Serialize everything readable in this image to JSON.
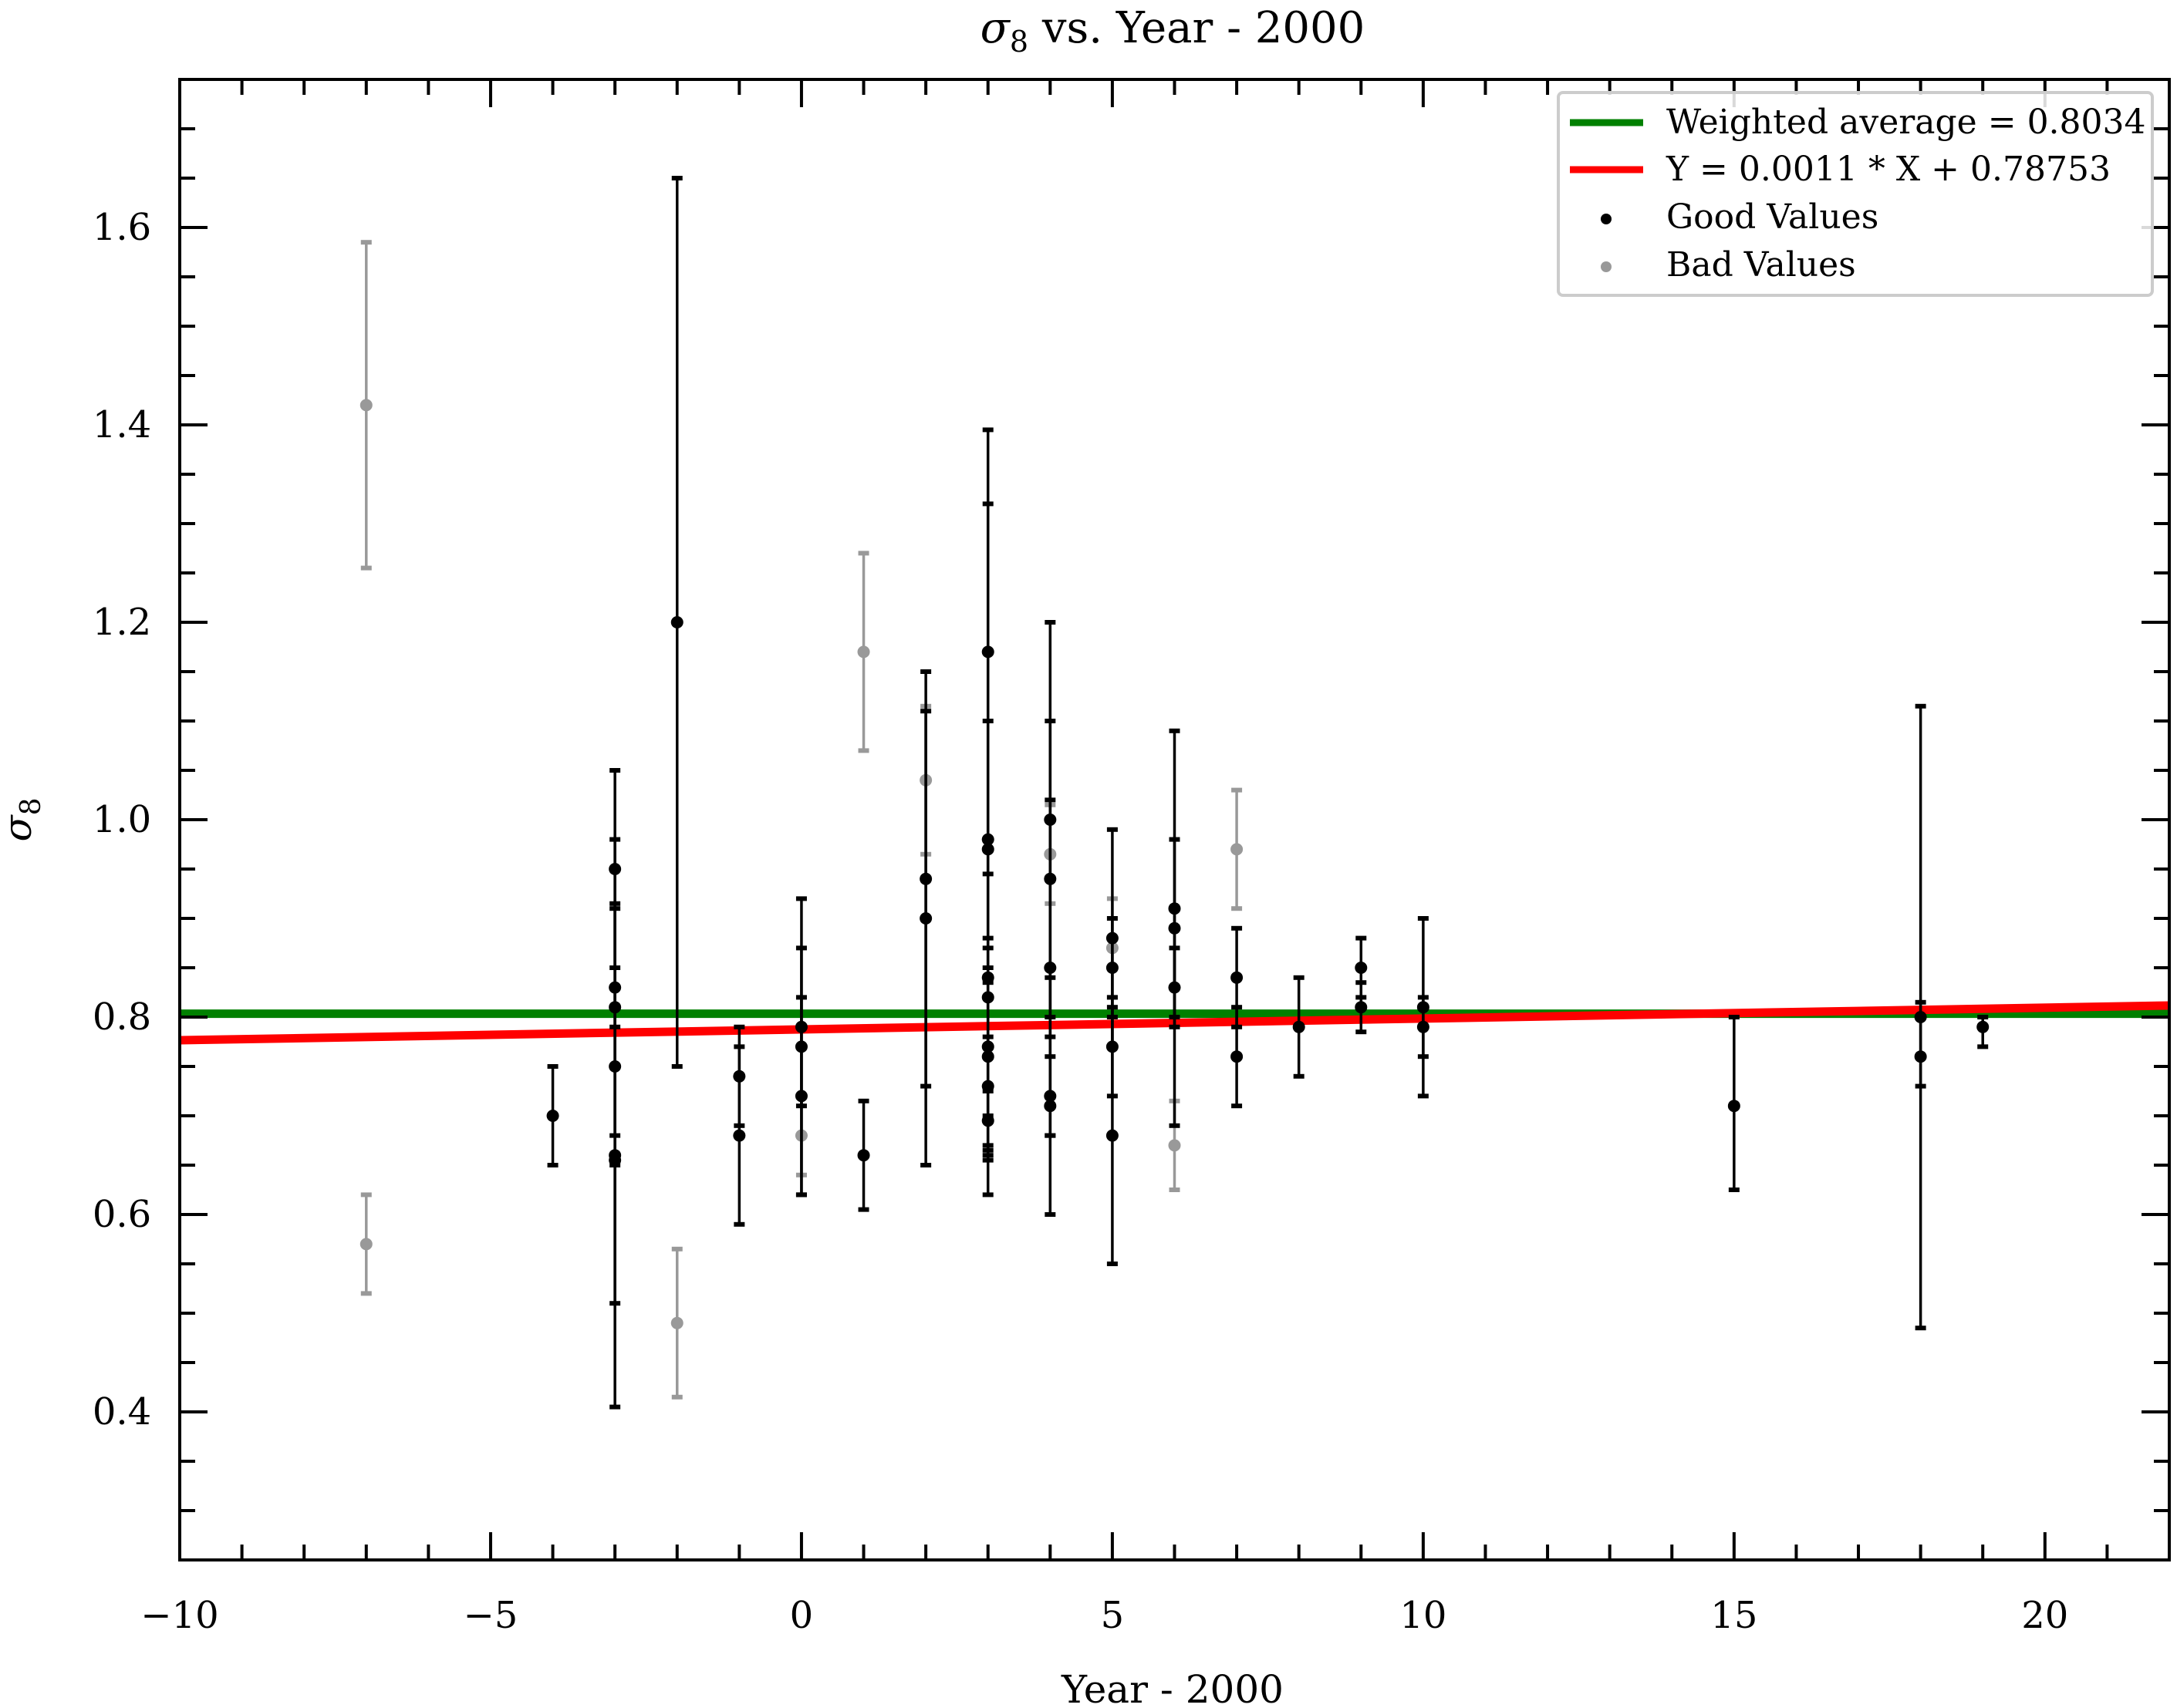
{
  "chart_data": {
    "type": "scatter",
    "title_prefix": "σ",
    "title_sub": "8",
    "title_suffix": " vs. Year - 2000",
    "xlabel": "Year - 2000",
    "ylabel_main": "σ",
    "ylabel_sub": "8",
    "xlim": [
      -10,
      22
    ],
    "ylim": [
      0.25,
      1.75
    ],
    "xticks": [
      -10,
      -5,
      0,
      5,
      10,
      15,
      20
    ],
    "xtick_labels": [
      "−10",
      "−5",
      "0",
      "5",
      "10",
      "15",
      "20"
    ],
    "yticks": [
      0.4,
      0.6,
      0.8,
      1.0,
      1.2,
      1.4,
      1.6
    ],
    "ytick_labels": [
      "0.4",
      "0.6",
      "0.8",
      "1.0",
      "1.2",
      "1.4",
      "1.6"
    ],
    "legend_position": "top-right",
    "legend": [
      {
        "label": "Weighted average = 0.8034",
        "kind": "line",
        "color": "#008000"
      },
      {
        "label": "Y = 0.0011 * X + 0.78753",
        "kind": "line",
        "color": "#ff0000"
      },
      {
        "label": "Good Values",
        "kind": "point",
        "color": "#000000"
      },
      {
        "label": "Bad Values",
        "kind": "point",
        "color": "#999999"
      }
    ],
    "lines": [
      {
        "name": "Weighted average = 0.8034",
        "color": "#008000",
        "slope": 0,
        "intercept": 0.8034
      },
      {
        "name": "Y = 0.0011 * X + 0.78753",
        "color": "#ff0000",
        "slope": 0.0011,
        "intercept": 0.78753
      }
    ],
    "series": [
      {
        "name": "Good Values",
        "color": "#000000",
        "points": [
          {
            "x": -4,
            "y": 0.7,
            "lo": 0.65,
            "hi": 0.75
          },
          {
            "x": -3,
            "y": 0.95,
            "lo": 0.85,
            "hi": 1.05
          },
          {
            "x": -3,
            "y": 0.83,
            "lo": 0.68,
            "hi": 0.98
          },
          {
            "x": -3,
            "y": 0.81,
            "lo": 0.79,
            "hi": 0.83
          },
          {
            "x": -3,
            "y": 0.75,
            "lo": 0.51,
            "hi": 0.91
          },
          {
            "x": -3,
            "y": 0.66,
            "lo": 0.405,
            "hi": 0.915
          },
          {
            "x": -3,
            "y": 0.655,
            "lo": 0.65,
            "hi": 0.66
          },
          {
            "x": -2,
            "y": 1.2,
            "lo": 0.75,
            "hi": 1.65
          },
          {
            "x": -1,
            "y": 0.74,
            "lo": 0.69,
            "hi": 0.79
          },
          {
            "x": -1,
            "y": 0.68,
            "lo": 0.59,
            "hi": 0.77
          },
          {
            "x": 0,
            "y": 0.79,
            "lo": 0.71,
            "hi": 0.87
          },
          {
            "x": 0,
            "y": 0.77,
            "lo": 0.62,
            "hi": 0.92
          },
          {
            "x": 0,
            "y": 0.72,
            "lo": 0.62,
            "hi": 0.82
          },
          {
            "x": 1,
            "y": 0.66,
            "lo": 0.605,
            "hi": 0.715
          },
          {
            "x": 2,
            "y": 0.94,
            "lo": 0.73,
            "hi": 1.15
          },
          {
            "x": 2,
            "y": 0.9,
            "lo": 0.65,
            "hi": 1.11
          },
          {
            "x": 3,
            "y": 1.17,
            "lo": 0.945,
            "hi": 1.395
          },
          {
            "x": 3,
            "y": 0.98,
            "lo": 0.62,
            "hi": 1.32
          },
          {
            "x": 3,
            "y": 0.97,
            "lo": 0.85,
            "hi": 1.1
          },
          {
            "x": 3,
            "y": 0.84,
            "lo": 0.7,
            "hi": 0.98
          },
          {
            "x": 3,
            "y": 0.82,
            "lo": 0.77,
            "hi": 0.87
          },
          {
            "x": 3,
            "y": 0.77,
            "lo": 0.67,
            "hi": 0.88
          },
          {
            "x": 3,
            "y": 0.76,
            "lo": 0.655,
            "hi": 0.835
          },
          {
            "x": 3,
            "y": 0.73,
            "lo": 0.66,
            "hi": 0.78
          },
          {
            "x": 3,
            "y": 0.695,
            "lo": 0.665,
            "hi": 0.725
          },
          {
            "x": 4,
            "y": 1.0,
            "lo": 0.8,
            "hi": 1.2
          },
          {
            "x": 4,
            "y": 0.94,
            "lo": 0.78,
            "hi": 1.1
          },
          {
            "x": 4,
            "y": 0.85,
            "lo": 0.68,
            "hi": 1.02
          },
          {
            "x": 4,
            "y": 0.72,
            "lo": 0.6,
            "hi": 0.84
          },
          {
            "x": 4,
            "y": 0.71,
            "lo": 0.68,
            "hi": 0.76
          },
          {
            "x": 5,
            "y": 0.88,
            "lo": 0.77,
            "hi": 0.99
          },
          {
            "x": 5,
            "y": 0.85,
            "lo": 0.8,
            "hi": 0.9
          },
          {
            "x": 5,
            "y": 0.77,
            "lo": 0.72,
            "hi": 0.82
          },
          {
            "x": 5,
            "y": 0.68,
            "lo": 0.55,
            "hi": 0.81
          },
          {
            "x": 6,
            "y": 0.91,
            "lo": 0.79,
            "hi": 1.09
          },
          {
            "x": 6,
            "y": 0.89,
            "lo": 0.8,
            "hi": 0.98
          },
          {
            "x": 6,
            "y": 0.83,
            "lo": 0.69,
            "hi": 0.87
          },
          {
            "x": 7,
            "y": 0.84,
            "lo": 0.79,
            "hi": 0.89
          },
          {
            "x": 7,
            "y": 0.76,
            "lo": 0.71,
            "hi": 0.81
          },
          {
            "x": 8,
            "y": 0.79,
            "lo": 0.74,
            "hi": 0.84
          },
          {
            "x": 9,
            "y": 0.85,
            "lo": 0.82,
            "hi": 0.88
          },
          {
            "x": 9,
            "y": 0.81,
            "lo": 0.785,
            "hi": 0.835
          },
          {
            "x": 10,
            "y": 0.81,
            "lo": 0.72,
            "hi": 0.9
          },
          {
            "x": 10,
            "y": 0.79,
            "lo": 0.76,
            "hi": 0.82
          },
          {
            "x": 15,
            "y": 0.71,
            "lo": 0.625,
            "hi": 0.8
          },
          {
            "x": 18,
            "y": 0.8,
            "lo": 0.73,
            "hi": 1.115
          },
          {
            "x": 18,
            "y": 0.76,
            "lo": 0.485,
            "hi": 0.815
          },
          {
            "x": 19,
            "y": 0.79,
            "lo": 0.77,
            "hi": 0.8
          }
        ]
      },
      {
        "name": "Bad Values",
        "color": "#999999",
        "points": [
          {
            "x": -7,
            "y": 1.42,
            "lo": 1.255,
            "hi": 1.585
          },
          {
            "x": -7,
            "y": 0.57,
            "lo": 0.52,
            "hi": 0.62
          },
          {
            "x": -2,
            "y": 0.49,
            "lo": 0.415,
            "hi": 0.565
          },
          {
            "x": 0,
            "y": 0.68,
            "lo": 0.64,
            "hi": 0.72
          },
          {
            "x": 1,
            "y": 1.17,
            "lo": 1.07,
            "hi": 1.27
          },
          {
            "x": 2,
            "y": 1.04,
            "lo": 0.965,
            "hi": 1.115
          },
          {
            "x": 4,
            "y": 0.965,
            "lo": 0.915,
            "hi": 1.015
          },
          {
            "x": 5,
            "y": 0.87,
            "lo": 0.82,
            "hi": 0.92
          },
          {
            "x": 6,
            "y": 0.67,
            "lo": 0.625,
            "hi": 0.715
          },
          {
            "x": 7,
            "y": 0.97,
            "lo": 0.91,
            "hi": 1.03
          }
        ]
      }
    ]
  }
}
